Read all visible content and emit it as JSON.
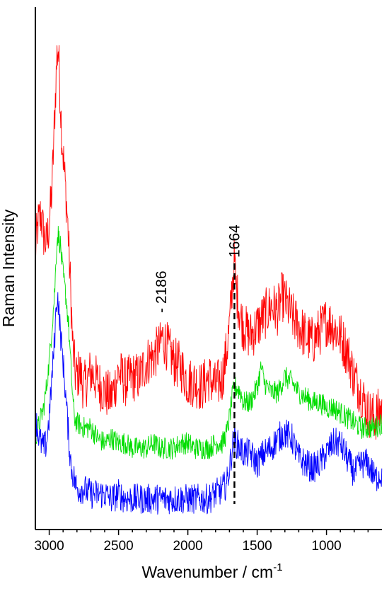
{
  "chart_data": {
    "type": "line",
    "title": "",
    "xlabel": "Wavenumber / cm",
    "xlabel_sup": "-1",
    "ylabel": "Raman Intensity",
    "xlim": [
      3100,
      600
    ],
    "x_reversed": true,
    "ylim": [
      0,
      100
    ],
    "y_ticks_shown": false,
    "x_ticks": [
      3000,
      2500,
      2000,
      1500,
      1000
    ],
    "grid": false,
    "legend": "none",
    "annotations": [
      {
        "text": "1664",
        "x": 1664,
        "style": "dashed vertical line"
      },
      {
        "text": "- 2186",
        "x": 2186
      }
    ],
    "series": [
      {
        "color": "#ff0000",
        "noise": 5.0,
        "points": [
          [
            3100,
            55
          ],
          [
            3080,
            60
          ],
          [
            3060,
            62
          ],
          [
            3040,
            58
          ],
          [
            3020,
            56
          ],
          [
            3000,
            60
          ],
          [
            2980,
            67
          ],
          [
            2960,
            82
          ],
          [
            2945,
            93
          ],
          [
            2935,
            95
          ],
          [
            2925,
            88
          ],
          [
            2910,
            78
          ],
          [
            2890,
            70
          ],
          [
            2870,
            62
          ],
          [
            2850,
            50
          ],
          [
            2830,
            36
          ],
          [
            2810,
            30
          ],
          [
            2780,
            31
          ],
          [
            2750,
            28
          ],
          [
            2700,
            31
          ],
          [
            2650,
            29
          ],
          [
            2600,
            27
          ],
          [
            2550,
            26
          ],
          [
            2500,
            31
          ],
          [
            2450,
            29
          ],
          [
            2400,
            30
          ],
          [
            2350,
            30
          ],
          [
            2300,
            33
          ],
          [
            2250,
            34
          ],
          [
            2200,
            36
          ],
          [
            2186,
            38
          ],
          [
            2150,
            36
          ],
          [
            2100,
            33
          ],
          [
            2050,
            32
          ],
          [
            2000,
            29
          ],
          [
            1950,
            29
          ],
          [
            1900,
            28
          ],
          [
            1850,
            30
          ],
          [
            1800,
            28
          ],
          [
            1750,
            30
          ],
          [
            1720,
            35
          ],
          [
            1700,
            40
          ],
          [
            1680,
            48
          ],
          [
            1664,
            53
          ],
          [
            1650,
            47
          ],
          [
            1620,
            42
          ],
          [
            1600,
            40
          ],
          [
            1550,
            38
          ],
          [
            1500,
            40
          ],
          [
            1450,
            42
          ],
          [
            1400,
            44
          ],
          [
            1350,
            43
          ],
          [
            1320,
            46
          ],
          [
            1300,
            45
          ],
          [
            1250,
            42
          ],
          [
            1200,
            40
          ],
          [
            1150,
            38
          ],
          [
            1100,
            37
          ],
          [
            1050,
            39
          ],
          [
            1000,
            41
          ],
          [
            950,
            40
          ],
          [
            900,
            38
          ],
          [
            850,
            35
          ],
          [
            800,
            30
          ],
          [
            750,
            27
          ],
          [
            700,
            23
          ],
          [
            650,
            22
          ],
          [
            600,
            24
          ]
        ]
      },
      {
        "color": "#00dd00",
        "noise": 2.2,
        "points": [
          [
            3100,
            18
          ],
          [
            3080,
            20
          ],
          [
            3060,
            22
          ],
          [
            3040,
            24
          ],
          [
            3020,
            28
          ],
          [
            3000,
            33
          ],
          [
            2980,
            40
          ],
          [
            2960,
            47
          ],
          [
            2945,
            57
          ],
          [
            2935,
            58
          ],
          [
            2920,
            56
          ],
          [
            2900,
            50
          ],
          [
            2880,
            46
          ],
          [
            2860,
            40
          ],
          [
            2840,
            30
          ],
          [
            2820,
            22
          ],
          [
            2800,
            21
          ],
          [
            2750,
            20
          ],
          [
            2700,
            20
          ],
          [
            2650,
            18
          ],
          [
            2600,
            17
          ],
          [
            2550,
            18
          ],
          [
            2500,
            17
          ],
          [
            2450,
            17
          ],
          [
            2400,
            16
          ],
          [
            2350,
            16
          ],
          [
            2300,
            16
          ],
          [
            2250,
            17
          ],
          [
            2200,
            16
          ],
          [
            2150,
            16
          ],
          [
            2100,
            16
          ],
          [
            2050,
            17
          ],
          [
            2000,
            17
          ],
          [
            1950,
            16
          ],
          [
            1900,
            16
          ],
          [
            1850,
            16
          ],
          [
            1800,
            17
          ],
          [
            1750,
            17
          ],
          [
            1720,
            19
          ],
          [
            1700,
            22
          ],
          [
            1680,
            26
          ],
          [
            1664,
            28
          ],
          [
            1650,
            28
          ],
          [
            1620,
            27
          ],
          [
            1600,
            25
          ],
          [
            1550,
            25
          ],
          [
            1500,
            28
          ],
          [
            1470,
            32
          ],
          [
            1450,
            29
          ],
          [
            1400,
            27
          ],
          [
            1350,
            27
          ],
          [
            1300,
            30
          ],
          [
            1250,
            29
          ],
          [
            1200,
            27
          ],
          [
            1150,
            26
          ],
          [
            1100,
            25
          ],
          [
            1050,
            25
          ],
          [
            1000,
            24
          ],
          [
            950,
            24
          ],
          [
            900,
            23
          ],
          [
            850,
            22
          ],
          [
            800,
            21
          ],
          [
            750,
            20
          ],
          [
            700,
            20
          ],
          [
            650,
            20
          ],
          [
            600,
            21
          ]
        ]
      },
      {
        "color": "#0000ff",
        "noise": 3.0,
        "points": [
          [
            3100,
            22
          ],
          [
            3080,
            19
          ],
          [
            3060,
            17
          ],
          [
            3040,
            16
          ],
          [
            3020,
            17
          ],
          [
            3000,
            22
          ],
          [
            2980,
            30
          ],
          [
            2960,
            38
          ],
          [
            2945,
            46
          ],
          [
            2935,
            45
          ],
          [
            2920,
            39
          ],
          [
            2900,
            33
          ],
          [
            2880,
            26
          ],
          [
            2860,
            18
          ],
          [
            2840,
            12
          ],
          [
            2820,
            10
          ],
          [
            2800,
            8
          ],
          [
            2750,
            8
          ],
          [
            2700,
            7
          ],
          [
            2650,
            7
          ],
          [
            2600,
            7
          ],
          [
            2550,
            6
          ],
          [
            2500,
            7
          ],
          [
            2450,
            6
          ],
          [
            2400,
            6
          ],
          [
            2350,
            6
          ],
          [
            2300,
            6
          ],
          [
            2250,
            6
          ],
          [
            2200,
            6
          ],
          [
            2150,
            6
          ],
          [
            2100,
            6
          ],
          [
            2050,
            6
          ],
          [
            2000,
            6
          ],
          [
            1950,
            6
          ],
          [
            1900,
            6
          ],
          [
            1850,
            6
          ],
          [
            1800,
            7
          ],
          [
            1750,
            8
          ],
          [
            1720,
            9
          ],
          [
            1700,
            12
          ],
          [
            1680,
            16
          ],
          [
            1664,
            18
          ],
          [
            1650,
            17
          ],
          [
            1620,
            16
          ],
          [
            1600,
            15
          ],
          [
            1550,
            15
          ],
          [
            1500,
            13
          ],
          [
            1450,
            15
          ],
          [
            1400,
            16
          ],
          [
            1350,
            18
          ],
          [
            1300,
            19
          ],
          [
            1250,
            18
          ],
          [
            1200,
            14
          ],
          [
            1150,
            13
          ],
          [
            1100,
            12
          ],
          [
            1050,
            13
          ],
          [
            1000,
            15
          ],
          [
            950,
            17
          ],
          [
            900,
            17
          ],
          [
            850,
            14
          ],
          [
            800,
            11
          ],
          [
            750,
            13
          ],
          [
            700,
            13
          ],
          [
            650,
            10
          ],
          [
            600,
            11
          ]
        ]
      }
    ]
  }
}
